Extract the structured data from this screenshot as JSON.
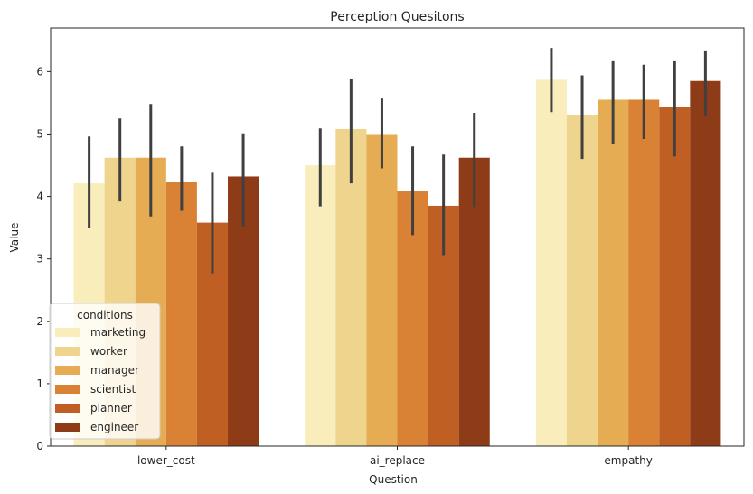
{
  "chart_data": {
    "type": "bar",
    "title": "Perception Quesitons",
    "xlabel": "Question",
    "ylabel": "Value",
    "categories": [
      "lower_cost",
      "ai_replace",
      "empathy"
    ],
    "ylim": [
      0,
      6.7
    ],
    "yticks": [
      0,
      1,
      2,
      3,
      4,
      5,
      6
    ],
    "legend": {
      "title": "conditions",
      "placement": "lower-left"
    },
    "error_bar_color": "#404040",
    "series": [
      {
        "name": "marketing",
        "color": "#f9edbb",
        "values": [
          4.21,
          4.5,
          5.87
        ],
        "ci": [
          [
            3.5,
            4.96
          ],
          [
            3.84,
            5.09
          ],
          [
            5.35,
            6.38
          ]
        ]
      },
      {
        "name": "worker",
        "color": "#efd48d",
        "values": [
          4.62,
          5.08,
          5.31
        ],
        "ci": [
          [
            3.92,
            5.25
          ],
          [
            4.21,
            5.88
          ],
          [
            4.6,
            5.94
          ]
        ]
      },
      {
        "name": "manager",
        "color": "#e6ac53",
        "values": [
          4.62,
          5.0,
          5.55
        ],
        "ci": [
          [
            3.68,
            5.48
          ],
          [
            4.45,
            5.57
          ],
          [
            4.84,
            6.18
          ]
        ]
      },
      {
        "name": "scientist",
        "color": "#d98134",
        "values": [
          4.23,
          4.09,
          5.55
        ],
        "ci": [
          [
            3.77,
            4.8
          ],
          [
            3.38,
            4.8
          ],
          [
            4.92,
            6.11
          ]
        ]
      },
      {
        "name": "planner",
        "color": "#c05f23",
        "values": [
          3.58,
          3.85,
          5.43
        ],
        "ci": [
          [
            2.77,
            4.38
          ],
          [
            3.06,
            4.67
          ],
          [
            4.64,
            6.18
          ]
        ]
      },
      {
        "name": "engineer",
        "color": "#8e3c17",
        "values": [
          4.32,
          4.62,
          5.85
        ],
        "ci": [
          [
            3.52,
            5.01
          ],
          [
            3.83,
            5.34
          ],
          [
            5.3,
            6.34
          ]
        ]
      }
    ]
  }
}
